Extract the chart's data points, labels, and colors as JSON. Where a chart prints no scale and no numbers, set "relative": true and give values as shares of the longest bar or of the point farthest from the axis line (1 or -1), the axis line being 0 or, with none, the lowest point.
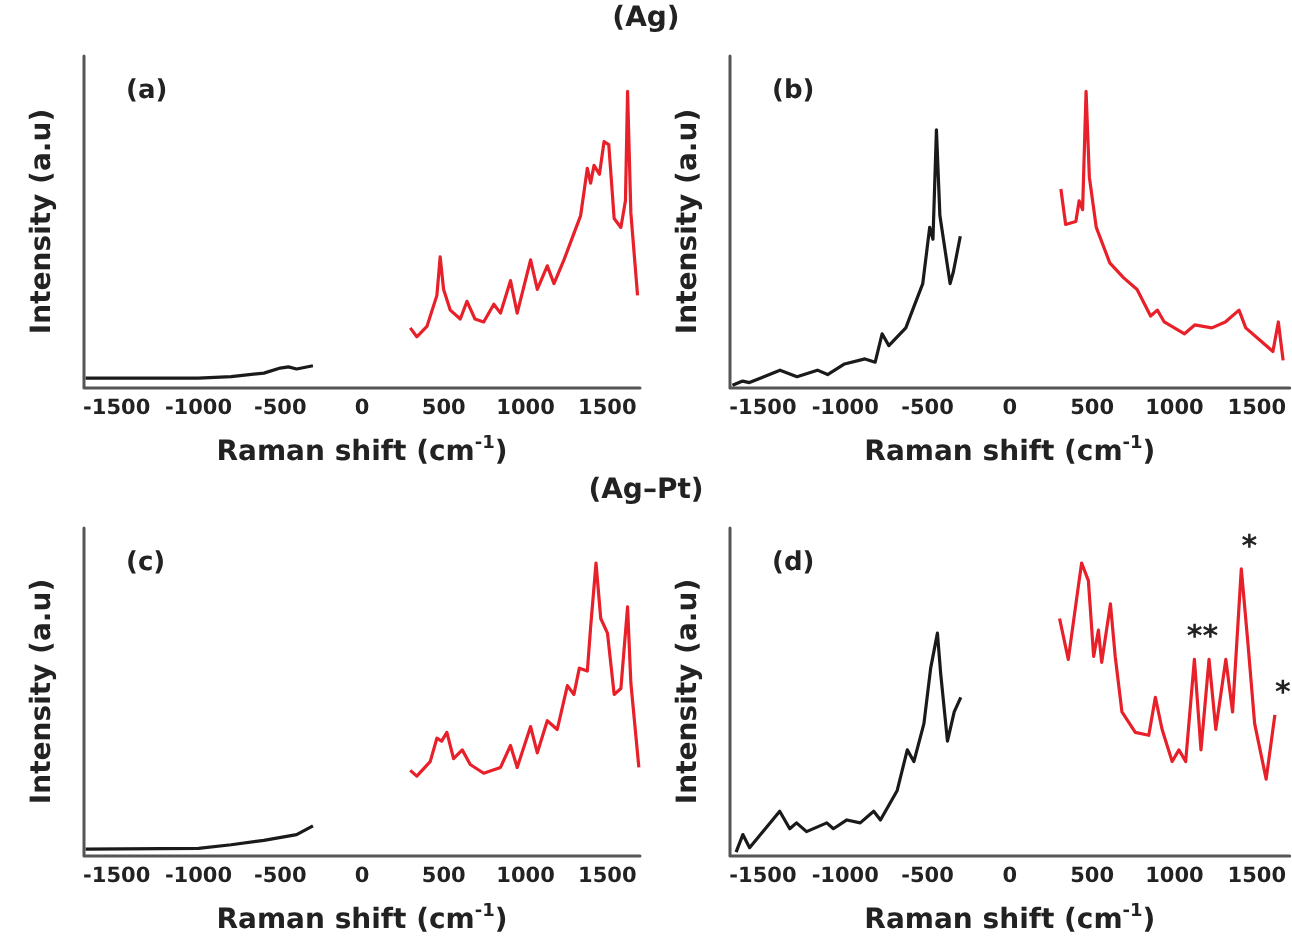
{
  "chart_data": [
    {
      "type": "line",
      "title": "(a)",
      "xlabel": "Raman shift (cm$^{-1}$)",
      "ylabel": "Intensity (a.u)",
      "relative": true,
      "xlim": [
        -1700,
        1700
      ],
      "xticks": [
        -1500,
        -1000,
        -500,
        0,
        500,
        1000,
        1500
      ],
      "marker": "none",
      "annotations": [
        "(Ag)"
      ],
      "series": [
        {
          "color": "#1a1a1a",
          "x": [
            -1690,
            -1300,
            -1000,
            -800,
            -600,
            -500,
            -450,
            -400,
            -300
          ],
          "values": [
            0.03,
            0.03,
            0.03,
            0.035,
            0.047,
            0.064,
            0.068,
            0.061,
            0.072
          ]
        },
        {
          "color": "#e8202a",
          "x": [
            295,
            335,
            397,
            458,
            478,
            499,
            540,
            601,
            642,
            691,
            744,
            806,
            847,
            908,
            949,
            1031,
            1072,
            1133,
            1174,
            1235,
            1296,
            1337,
            1378,
            1398,
            1419,
            1452,
            1480,
            1509,
            1542,
            1583,
            1611,
            1624,
            1644,
            1685
          ],
          "values": [
            0.2,
            0.17,
            0.205,
            0.31,
            0.44,
            0.33,
            0.26,
            0.23,
            0.29,
            0.23,
            0.22,
            0.28,
            0.25,
            0.36,
            0.25,
            0.43,
            0.33,
            0.41,
            0.35,
            0.43,
            0.52,
            0.58,
            0.74,
            0.69,
            0.75,
            0.72,
            0.83,
            0.82,
            0.57,
            0.54,
            0.63,
            1.0,
            0.59,
            0.31
          ]
        }
      ]
    },
    {
      "type": "line",
      "title": "(b)",
      "xlabel": "Raman shift (cm$^{-1}$)",
      "ylabel": "Intensity (a.u)",
      "relative": true,
      "xlim": [
        -1700,
        1700
      ],
      "xticks": [
        -1500,
        -1000,
        -500,
        0,
        500,
        1000,
        1500
      ],
      "marker": "none",
      "series": [
        {
          "color": "#1a1a1a",
          "x": [
            -1685,
            -1623,
            -1582,
            -1396,
            -1293,
            -1169,
            -1107,
            -1004,
            -880,
            -818,
            -776,
            -735,
            -632,
            -591,
            -529,
            -487,
            -467,
            -446,
            -425,
            -363,
            -343,
            -301
          ],
          "values": [
            0.006,
            0.02,
            0.015,
            0.057,
            0.035,
            0.057,
            0.042,
            0.078,
            0.095,
            0.084,
            0.18,
            0.14,
            0.2,
            0.26,
            0.35,
            0.54,
            0.5,
            0.87,
            0.58,
            0.35,
            0.39,
            0.51
          ]
        },
        {
          "color": "#e8202a",
          "x": [
            310,
            339,
            401,
            421,
            442,
            463,
            483,
            525,
            607,
            690,
            773,
            855,
            896,
            938,
            1061,
            1123,
            1227,
            1309,
            1392,
            1433,
            1516,
            1598,
            1631,
            1660
          ],
          "values": [
            0.67,
            0.55,
            0.56,
            0.63,
            0.6,
            1.0,
            0.71,
            0.54,
            0.42,
            0.37,
            0.33,
            0.24,
            0.26,
            0.22,
            0.18,
            0.21,
            0.2,
            0.22,
            0.26,
            0.2,
            0.16,
            0.12,
            0.22,
            0.09
          ]
        }
      ]
    },
    {
      "type": "line",
      "title": "(c)",
      "xlabel": "Raman shift (cm$^{-1}$)",
      "ylabel": "Intensity (a.u)",
      "relative": true,
      "xlim": [
        -1700,
        1700
      ],
      "xticks": [
        -1500,
        -1000,
        -500,
        0,
        500,
        1000,
        1500
      ],
      "marker": "none",
      "annotations": [
        "(Ag–Pt)"
      ],
      "series": [
        {
          "color": "#1a1a1a",
          "x": [
            -1690,
            -1000,
            -800,
            -600,
            -400,
            -300
          ],
          "values": [
            0.02,
            0.023,
            0.035,
            0.05,
            0.07,
            0.1
          ]
        },
        {
          "color": "#e8202a",
          "x": [
            295,
            335,
            417,
            458,
            487,
            519,
            560,
            613,
            662,
            744,
            847,
            908,
            949,
            1031,
            1072,
            1133,
            1194,
            1256,
            1296,
            1329,
            1378,
            1398,
            1431,
            1460,
            1501,
            1542,
            1583,
            1624,
            1644,
            1693
          ],
          "values": [
            0.29,
            0.27,
            0.32,
            0.4,
            0.39,
            0.42,
            0.33,
            0.36,
            0.31,
            0.28,
            0.3,
            0.375,
            0.3,
            0.44,
            0.35,
            0.46,
            0.43,
            0.58,
            0.55,
            0.64,
            0.63,
            0.78,
            1.0,
            0.81,
            0.76,
            0.55,
            0.57,
            0.85,
            0.59,
            0.3
          ]
        }
      ]
    },
    {
      "type": "line",
      "title": "(d)",
      "xlabel": "Raman shift (cm$^{-1}$)",
      "ylabel": "Intensity (a.u)",
      "relative": true,
      "xlim": [
        -1700,
        1700
      ],
      "xticks": [
        -1500,
        -1000,
        -500,
        0,
        500,
        1000,
        1500
      ],
      "marker": "none",
      "annotations": [
        {
          "text": "**",
          "x": 1121,
          "y": 0.67
        },
        {
          "text": "*",
          "x": 1406,
          "y": 0.98
        },
        {
          "text": "*",
          "x": 1610,
          "y": 0.48
        }
      ],
      "series": [
        {
          "color": "#1a1a1a",
          "x": [
            -1663,
            -1622,
            -1581,
            -1398,
            -1337,
            -1296,
            -1235,
            -1112,
            -1072,
            -990,
            -909,
            -827,
            -786,
            -685,
            -623,
            -583,
            -522,
            -481,
            -440,
            -420,
            -379,
            -338,
            -298
          ],
          "values": [
            0.01,
            0.07,
            0.025,
            0.15,
            0.09,
            0.11,
            0.08,
            0.11,
            0.09,
            0.12,
            0.11,
            0.15,
            0.12,
            0.22,
            0.36,
            0.32,
            0.45,
            0.64,
            0.76,
            0.62,
            0.39,
            0.49,
            0.54
          ]
        },
        {
          "color": "#e8202a",
          "x": [
            302,
            355,
            416,
            436,
            477,
            509,
            538,
            558,
            611,
            640,
            681,
            762,
            844,
            884,
            925,
            986,
            1027,
            1068,
            1121,
            1161,
            1210,
            1251,
            1312,
            1353,
            1406,
            1447,
            1487,
            1557,
            1610
          ],
          "values": [
            0.81,
            0.67,
            0.92,
            1.0,
            0.94,
            0.68,
            0.77,
            0.66,
            0.86,
            0.68,
            0.49,
            0.42,
            0.41,
            0.54,
            0.43,
            0.32,
            0.36,
            0.32,
            0.67,
            0.36,
            0.67,
            0.43,
            0.67,
            0.49,
            0.98,
            0.72,
            0.45,
            0.26,
            0.48
          ]
        }
      ]
    }
  ]
}
